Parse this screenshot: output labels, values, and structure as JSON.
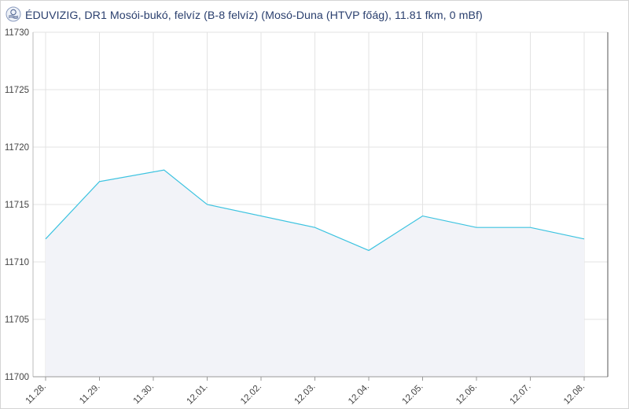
{
  "header": {
    "title": "ÉDUVIZIG, DR1 Mosói-bukó, felvíz (B-8 felvíz) (Mosó-Duna (HTVP főág), 11.81 fkm, 0 mBf)",
    "logo_icon": "eduvizig-logo-icon"
  },
  "colors": {
    "line": "#3cc3e0",
    "area": "#f2f3f8",
    "grid": "#e3e3e3",
    "title": "#2a3f6e",
    "text": "#444444"
  },
  "chart_data": {
    "type": "area",
    "title": "ÉDUVIZIG, DR1 Mosói-bukó, felvíz (B-8 felvíz) (Mosó-Duna (HTVP főág), 11.81 fkm, 0 mBf)",
    "xlabel": "",
    "ylabel": "",
    "categories": [
      "11.28.",
      "11.29.",
      "11.30.",
      "12.01.",
      "12.02.",
      "12.03.",
      "12.04.",
      "12.05.",
      "12.06.",
      "12.07.",
      "12.08."
    ],
    "ylim": [
      11700,
      11730
    ],
    "yticks": [
      11700,
      11705,
      11710,
      11715,
      11720,
      11725,
      11730
    ],
    "grid": true,
    "series": [
      {
        "points": [
          {
            "x": 0,
            "y": 11712
          },
          {
            "x": 1,
            "y": 11717
          },
          {
            "x": 2.2,
            "y": 11718
          },
          {
            "x": 3,
            "y": 11715
          },
          {
            "x": 5,
            "y": 11713
          },
          {
            "x": 6,
            "y": 11711
          },
          {
            "x": 7,
            "y": 11714
          },
          {
            "x": 8,
            "y": 11713
          },
          {
            "x": 9,
            "y": 11713
          },
          {
            "x": 10,
            "y": 11712
          }
        ]
      }
    ]
  }
}
